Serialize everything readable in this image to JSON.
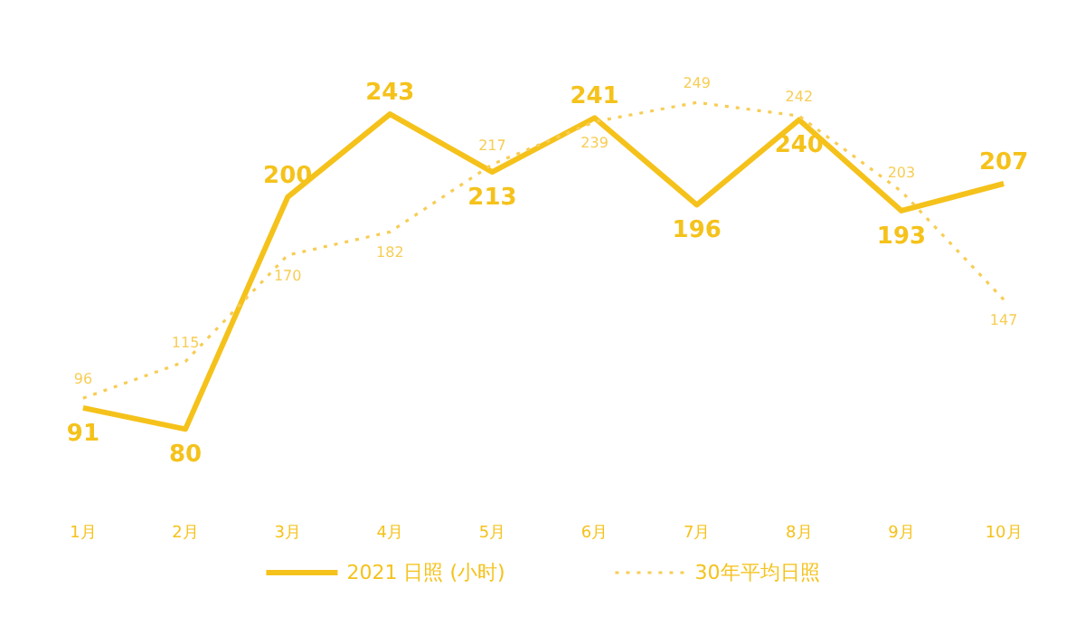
{
  "chart_data": {
    "type": "line",
    "categories": [
      "1月",
      "2月",
      "3月",
      "4月",
      "5月",
      "6月",
      "7月",
      "8月",
      "9月",
      "10月"
    ],
    "series": [
      {
        "name": "2021 日照 (小时)",
        "color": "#f5c21b",
        "line_style": "solid",
        "values": [
          91,
          80,
          200,
          243,
          213,
          241,
          196,
          240,
          193,
          207
        ]
      },
      {
        "name": "30年平均日照",
        "color": "#f7cd55",
        "line_style": "dotted",
        "values": [
          96,
          115,
          170,
          182,
          217,
          239,
          249,
          242,
          203,
          147
        ]
      }
    ],
    "data_labels": true,
    "legend": "bottom"
  }
}
